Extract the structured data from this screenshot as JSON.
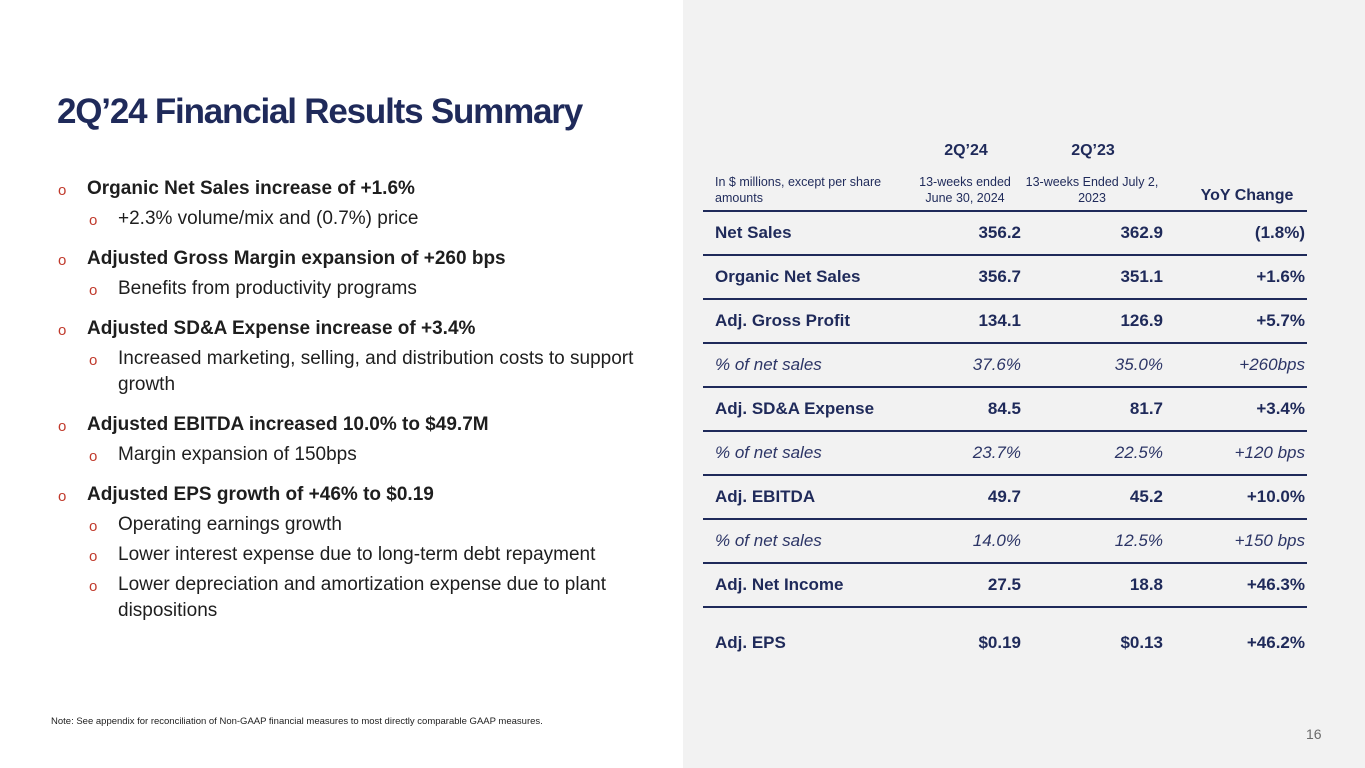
{
  "slide": {
    "title": "2Q’24 Financial Results Summary",
    "note": "Note: See appendix for reconciliation of Non-GAAP financial measures to most directly comparable GAAP measures.",
    "page_number": "16",
    "accent_color": "#1f2a5a",
    "bullet_color": "#c0392b",
    "panel_color": "#f2f2f2"
  },
  "bullets": [
    {
      "text": "Organic Net Sales increase of +1.6%",
      "subs": [
        "+2.3% volume/mix and (0.7%) price"
      ]
    },
    {
      "text": "Adjusted Gross Margin expansion of +260 bps",
      "subs": [
        "Benefits from productivity programs"
      ]
    },
    {
      "text": "Adjusted SD&A Expense increase of +3.4%",
      "subs": [
        "Increased marketing, selling, and distribution costs to support growth"
      ]
    },
    {
      "text": "Adjusted EBITDA increased 10.0% to $49.7M",
      "subs": [
        "Margin expansion of 150bps"
      ]
    },
    {
      "text": "Adjusted EPS growth of +46% to $0.19",
      "subs": [
        "Operating earnings growth",
        "Lower interest expense due to long-term debt repayment",
        "Lower depreciation and amortization expense due to plant dispositions"
      ]
    }
  ],
  "bullet_marker": "o",
  "table": {
    "period_cur": "2Q’24",
    "period_prev": "2Q’23",
    "header_label": "In $ millions, except per share amounts",
    "header_cur": "13-weeks ended June 30, 2024",
    "header_prev": "13-weeks Ended July 2, 2023",
    "header_yoy": "YoY Change",
    "rows": [
      {
        "label": "Net Sales",
        "cur": "356.2",
        "prev": "362.9",
        "yoy": "(1.8%)"
      },
      {
        "label": "Organic Net Sales",
        "cur": "356.7",
        "prev": "351.1",
        "yoy": "+1.6%"
      },
      {
        "label": "Adj. Gross Profit",
        "cur": "134.1",
        "prev": "126.9",
        "yoy": "+5.7%"
      },
      {
        "label": "% of net sales",
        "cur": "37.6%",
        "prev": "35.0%",
        "yoy": "+260bps"
      },
      {
        "label": "Adj. SD&A Expense",
        "cur": "84.5",
        "prev": "81.7",
        "yoy": "+3.4%"
      },
      {
        "label": "% of net sales",
        "cur": "23.7%",
        "prev": "22.5%",
        "yoy": "+120 bps"
      },
      {
        "label": "Adj. EBITDA",
        "cur": "49.7",
        "prev": "45.2",
        "yoy": "+10.0%"
      },
      {
        "label": "% of net sales",
        "cur": "14.0%",
        "prev": "12.5%",
        "yoy": "+150 bps"
      },
      {
        "label": "Adj. Net Income",
        "cur": "27.5",
        "prev": "18.8",
        "yoy": "+46.3%"
      },
      {
        "label": "Adj. EPS",
        "cur": "$0.19",
        "prev": "$0.13",
        "yoy": "+46.2%"
      }
    ]
  }
}
